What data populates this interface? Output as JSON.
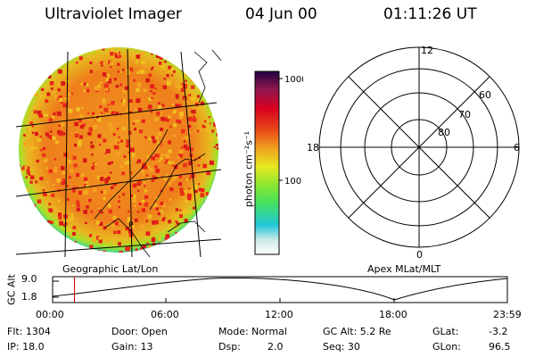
{
  "header": {
    "instrument": "Ultraviolet Imager",
    "date": "04 Jun 00",
    "time": "01:11:26 UT"
  },
  "colorbar": {
    "unit_label": "photon cm⁻²s⁻¹",
    "ticks": [
      "1000",
      "100"
    ],
    "scale": "log",
    "colors": [
      "#ffffff",
      "#cde8e8",
      "#22c8d8",
      "#44e060",
      "#8ce830",
      "#e8e820",
      "#f0a020",
      "#e84818",
      "#d80020",
      "#901850",
      "#200040"
    ]
  },
  "geo_panel": {
    "caption": "Geographic Lat/Lon",
    "marker": "P"
  },
  "polar_panel": {
    "caption": "Apex MLat/MLT",
    "mlt_labels": {
      "top": "12",
      "left": "18",
      "right": "6",
      "bottom": "0"
    },
    "lat_labels": [
      "60",
      "70",
      "80"
    ]
  },
  "altitude_plot": {
    "ylabel": "GC Alt",
    "yticks": [
      "9.0",
      "1.8"
    ],
    "xticks": [
      "00:00",
      "06:00",
      "12:00",
      "18:00",
      "23:59"
    ],
    "current_time_fraction": 0.048
  },
  "info": {
    "flt": "Flt: 1304",
    "ip": "IP: 18.0",
    "door": "Door: Open",
    "gain": "Gain: 13",
    "mode": "Mode: Normal",
    "dsp_label": "Dsp:",
    "dsp_value": "2.0",
    "gc_alt": "GC Alt: 5.2 Re",
    "seq": "Seq: 30",
    "glat_label": "GLat:",
    "glat_value": "-3.2",
    "glon_label": "GLon:",
    "glon_value": "96.5"
  }
}
